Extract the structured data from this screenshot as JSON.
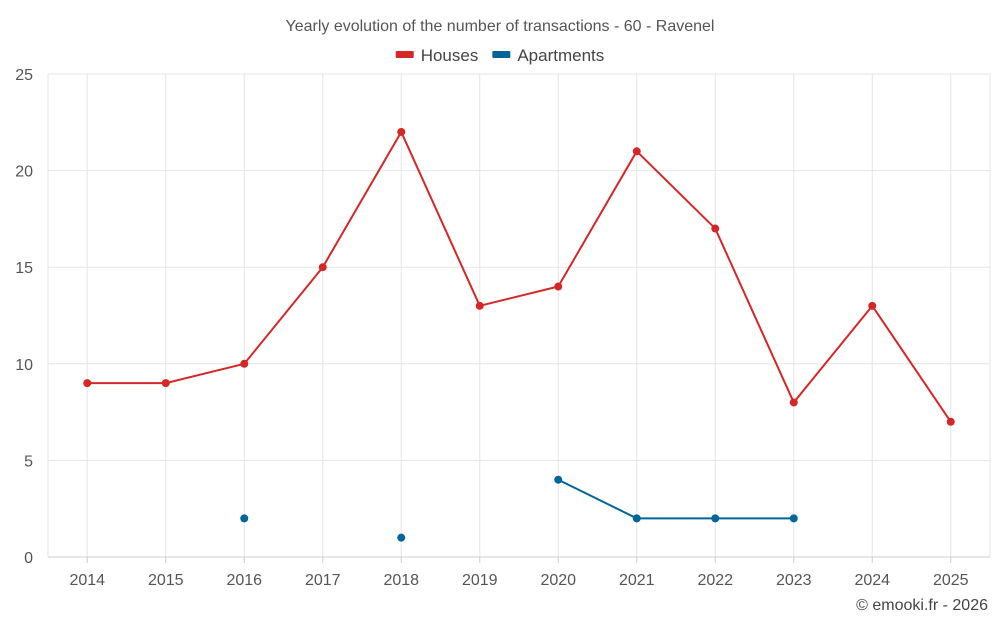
{
  "chart_data": {
    "type": "line",
    "title": "Yearly evolution of the number of transactions - 60 - Ravenel",
    "categories": [
      "2014",
      "2015",
      "2016",
      "2017",
      "2018",
      "2019",
      "2020",
      "2021",
      "2022",
      "2023",
      "2024",
      "2025"
    ],
    "ylim": [
      0,
      25
    ],
    "yticks": [
      0,
      5,
      10,
      15,
      20,
      25
    ],
    "grid": true,
    "legend_position": "top-center",
    "series": [
      {
        "name": "Houses",
        "color": "#d62728",
        "values": [
          9,
          9,
          10,
          15,
          22,
          13,
          14,
          21,
          17,
          8,
          13,
          7
        ]
      },
      {
        "name": "Apartments",
        "color": "#006699",
        "values": [
          null,
          null,
          2,
          null,
          1,
          null,
          4,
          2,
          2,
          2,
          null,
          null
        ]
      }
    ]
  },
  "credit": "© emooki.fr - 2026"
}
